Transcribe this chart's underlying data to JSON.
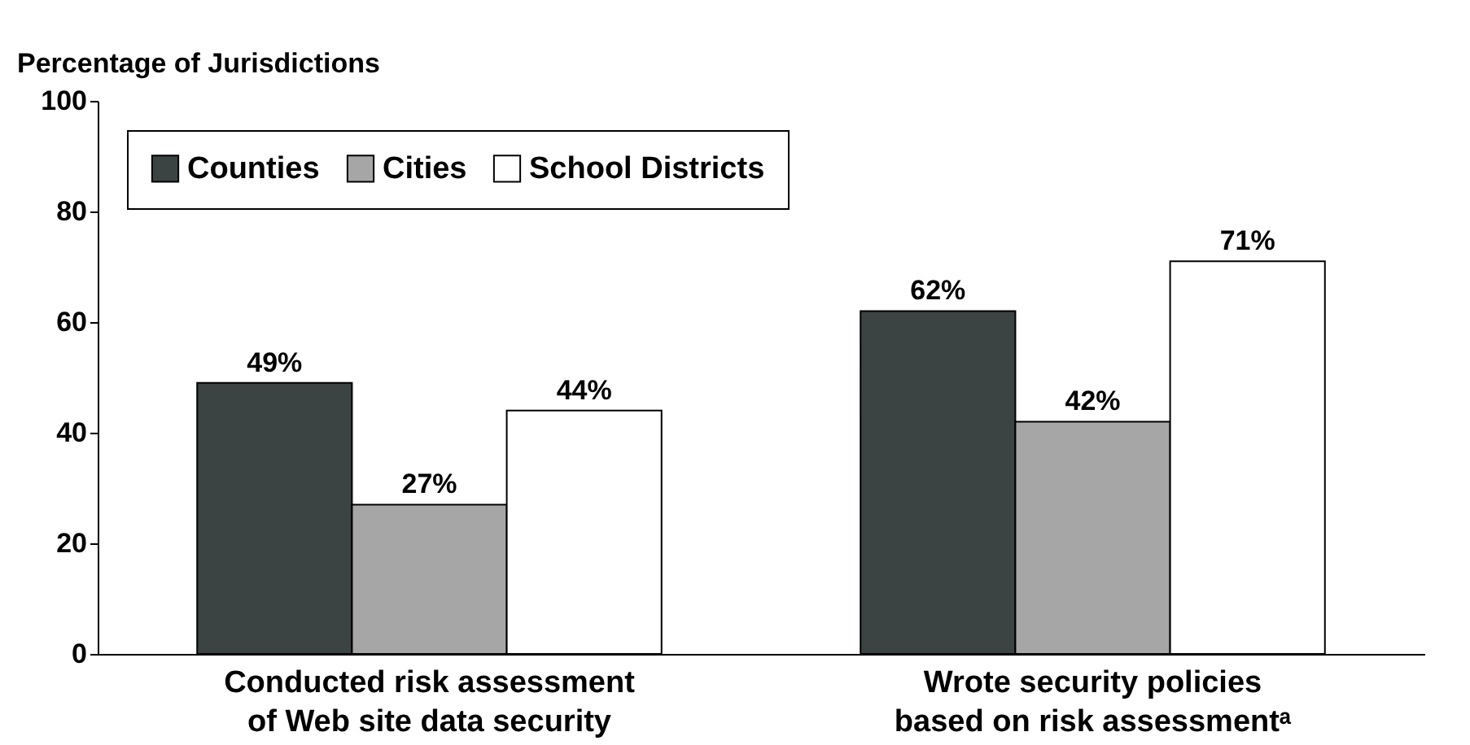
{
  "chart_data": {
    "type": "bar",
    "ylabel": "Percentage of Jurisdictions",
    "categories": [
      "Conducted risk assessment\nof Web site data security",
      "Wrote security policies\nbased on risk assessmentᵃ"
    ],
    "series": [
      {
        "name": "Counties",
        "color": "#3b4443",
        "values": [
          49,
          62
        ],
        "value_labels": [
          "49%",
          "62%"
        ]
      },
      {
        "name": "Cities",
        "color": "#a6a6a6",
        "values": [
          27,
          42
        ],
        "value_labels": [
          "27%",
          "42%"
        ]
      },
      {
        "name": "School Districts",
        "color": "#ffffff",
        "values": [
          44,
          71
        ],
        "value_labels": [
          "44%",
          "71%"
        ]
      }
    ],
    "ylim": [
      0,
      100
    ],
    "yticks": [
      0,
      20,
      40,
      60,
      80,
      100
    ],
    "grid": false,
    "legend": "top left"
  }
}
